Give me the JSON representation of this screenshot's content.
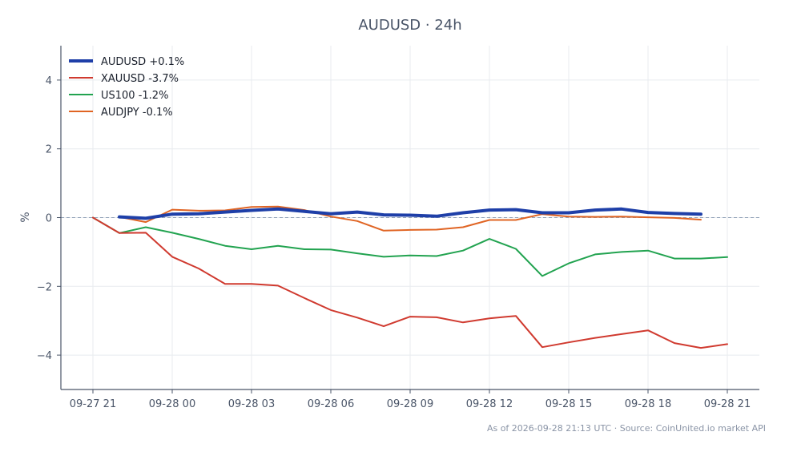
{
  "chart_data": {
    "type": "line",
    "title": "AUDUSD · 24h",
    "xlabel": "",
    "ylabel": "%",
    "footer": "As of 2026-09-28 21:13 UTC · Source: CoinUnited.io market API",
    "x_ticks": [
      "09-27 21",
      "09-28 00",
      "09-28 03",
      "09-28 06",
      "09-28 09",
      "09-28 12",
      "09-28 15",
      "09-28 18",
      "09-28 21"
    ],
    "y_ticks": [
      4,
      2,
      0,
      -2,
      -4
    ],
    "y_tick_labels": [
      "4",
      "2",
      "0",
      "−2",
      "−4"
    ],
    "xlim": [
      "09-27 21:00",
      "09-28 21:00"
    ],
    "ylim": [
      -5,
      5
    ],
    "grid": true,
    "legend_position": "top-left",
    "zero_line": true,
    "colors": {
      "axis": "#4a5568",
      "grid": "#e8ebef",
      "zero_line": "#94a3b8"
    },
    "series": [
      {
        "name": "AUDUSD +0.1%",
        "color": "#1e3fa8",
        "width": 4,
        "x": [
          "09-27 22:00",
          "09-27 23:00",
          "09-28 00:00",
          "09-28 01:00",
          "09-28 02:00",
          "09-28 03:00",
          "09-28 04:00",
          "09-28 05:00",
          "09-28 06:00",
          "09-28 07:00",
          "09-28 08:00",
          "09-28 09:00",
          "09-28 10:00",
          "09-28 11:00",
          "09-28 12:00",
          "09-28 13:00",
          "09-28 14:00",
          "09-28 15:00",
          "09-28 16:00",
          "09-28 17:00",
          "09-28 18:00",
          "09-28 19:00",
          "09-28 20:00"
        ],
        "values": [
          0.02,
          -0.02,
          0.1,
          0.11,
          0.16,
          0.21,
          0.25,
          0.18,
          0.11,
          0.16,
          0.08,
          0.07,
          0.04,
          0.14,
          0.22,
          0.23,
          0.14,
          0.14,
          0.22,
          0.25,
          0.15,
          0.12,
          0.1
        ]
      },
      {
        "name": "XAUUSD -3.7%",
        "color": "#d03a2f",
        "width": 2,
        "x": [
          "09-27 21:00",
          "09-27 22:00",
          "09-27 23:00",
          "09-28 00:00",
          "09-28 01:00",
          "09-28 02:00",
          "09-28 03:00",
          "09-28 04:00",
          "09-28 05:00",
          "09-28 06:00",
          "09-28 07:00",
          "09-28 08:00",
          "09-28 09:00",
          "09-28 10:00",
          "09-28 11:00",
          "09-28 12:00",
          "09-28 13:00",
          "09-28 14:00",
          "09-28 15:00",
          "09-28 16:00",
          "09-28 17:00",
          "09-28 18:00",
          "09-28 19:00",
          "09-28 20:00",
          "09-28 21:00"
        ],
        "values": [
          0.0,
          -0.45,
          -0.44,
          -1.14,
          -1.48,
          -1.93,
          -1.93,
          -1.98,
          -2.34,
          -2.69,
          -2.91,
          -3.16,
          -2.88,
          -2.9,
          -3.05,
          -2.93,
          -2.86,
          -3.77,
          -3.63,
          -3.5,
          -3.39,
          -3.28,
          -3.65,
          -3.79,
          -3.68
        ]
      },
      {
        "name": "US100 -1.2%",
        "color": "#22a350",
        "width": 2,
        "x": [
          "09-27 21:00",
          "09-27 22:00",
          "09-27 23:00",
          "09-28 00:00",
          "09-28 01:00",
          "09-28 02:00",
          "09-28 03:00",
          "09-28 04:00",
          "09-28 05:00",
          "09-28 06:00",
          "09-28 07:00",
          "09-28 08:00",
          "09-28 09:00",
          "09-28 10:00",
          "09-28 11:00",
          "09-28 12:00",
          "09-28 13:00",
          "09-28 14:00",
          "09-28 15:00",
          "09-28 16:00",
          "09-28 17:00",
          "09-28 18:00",
          "09-28 19:00",
          "09-28 20:00",
          "09-28 21:00"
        ],
        "values": [
          0.0,
          -0.45,
          -0.28,
          -0.44,
          -0.62,
          -0.82,
          -0.92,
          -0.82,
          -0.92,
          -0.93,
          -1.04,
          -1.14,
          -1.1,
          -1.12,
          -0.96,
          -0.62,
          -0.91,
          -1.7,
          -1.33,
          -1.07,
          -1.0,
          -0.96,
          -1.19,
          -1.19,
          -1.15
        ]
      },
      {
        "name": "AUDJPY -0.1%",
        "color": "#e06423",
        "width": 2,
        "x": [
          "09-27 22:00",
          "09-27 23:00",
          "09-28 00:00",
          "09-28 01:00",
          "09-28 02:00",
          "09-28 03:00",
          "09-28 04:00",
          "09-28 05:00",
          "09-28 06:00",
          "09-28 07:00",
          "09-28 08:00",
          "09-28 09:00",
          "09-28 10:00",
          "09-28 11:00",
          "09-28 12:00",
          "09-28 13:00",
          "09-28 14:00",
          "09-28 15:00",
          "09-28 16:00",
          "09-28 17:00",
          "09-28 18:00",
          "09-28 19:00",
          "09-28 20:00"
        ],
        "values": [
          0.02,
          -0.13,
          0.23,
          0.2,
          0.21,
          0.31,
          0.32,
          0.22,
          0.03,
          -0.1,
          -0.38,
          -0.36,
          -0.35,
          -0.28,
          -0.07,
          -0.07,
          0.1,
          0.03,
          0.02,
          0.03,
          0.01,
          -0.01,
          -0.06
        ]
      }
    ]
  }
}
